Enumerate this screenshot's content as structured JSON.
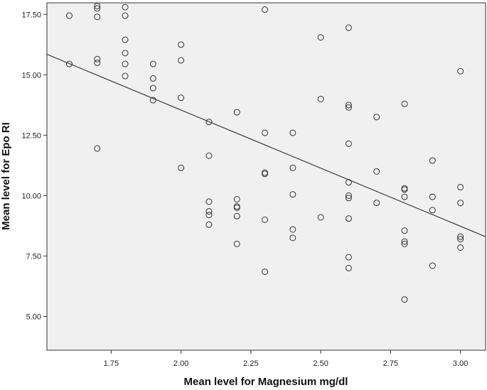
{
  "chart_data": {
    "type": "scatter",
    "xlabel": "Mean level for Magnesium mg/dl",
    "ylabel": "Mean level for Epo RI",
    "xlim": [
      1.52,
      3.09
    ],
    "ylim": [
      3.6,
      17.98
    ],
    "x_ticks": [
      {
        "value": 1.75,
        "label": "1.75"
      },
      {
        "value": 2.0,
        "label": "2.00"
      },
      {
        "value": 2.25,
        "label": "2.25"
      },
      {
        "value": 2.5,
        "label": "2.50"
      },
      {
        "value": 2.75,
        "label": "2.75"
      },
      {
        "value": 3.0,
        "label": "3.00"
      }
    ],
    "y_ticks": [
      {
        "value": 5.0,
        "label": "5.00"
      },
      {
        "value": 7.5,
        "label": "7.50"
      },
      {
        "value": 10.0,
        "label": "10.00"
      },
      {
        "value": 12.5,
        "label": "12.50"
      },
      {
        "value": 15.0,
        "label": "15.00"
      },
      {
        "value": 17.5,
        "label": "17.50"
      }
    ],
    "grid": false,
    "fit_line": {
      "x": [
        1.52,
        3.09
      ],
      "y": [
        15.85,
        8.3
      ]
    },
    "points": [
      {
        "x": 1.6,
        "y": 17.45
      },
      {
        "x": 1.6,
        "y": 15.45
      },
      {
        "x": 1.7,
        "y": 17.85
      },
      {
        "x": 1.7,
        "y": 17.75
      },
      {
        "x": 1.7,
        "y": 17.4
      },
      {
        "x": 1.7,
        "y": 15.65
      },
      {
        "x": 1.7,
        "y": 15.5
      },
      {
        "x": 1.7,
        "y": 11.95
      },
      {
        "x": 1.8,
        "y": 17.8
      },
      {
        "x": 1.8,
        "y": 17.45
      },
      {
        "x": 1.8,
        "y": 16.45
      },
      {
        "x": 1.8,
        "y": 15.9
      },
      {
        "x": 1.8,
        "y": 15.45
      },
      {
        "x": 1.8,
        "y": 14.95
      },
      {
        "x": 1.9,
        "y": 15.45
      },
      {
        "x": 1.9,
        "y": 14.85
      },
      {
        "x": 1.9,
        "y": 14.45
      },
      {
        "x": 1.9,
        "y": 13.95
      },
      {
        "x": 2.0,
        "y": 16.25
      },
      {
        "x": 2.0,
        "y": 15.6
      },
      {
        "x": 2.0,
        "y": 14.05
      },
      {
        "x": 2.0,
        "y": 11.15
      },
      {
        "x": 2.1,
        "y": 13.05
      },
      {
        "x": 2.1,
        "y": 11.65
      },
      {
        "x": 2.1,
        "y": 9.75
      },
      {
        "x": 2.1,
        "y": 9.35
      },
      {
        "x": 2.1,
        "y": 9.2
      },
      {
        "x": 2.1,
        "y": 8.8
      },
      {
        "x": 2.2,
        "y": 13.45
      },
      {
        "x": 2.2,
        "y": 9.85
      },
      {
        "x": 2.2,
        "y": 9.55
      },
      {
        "x": 2.2,
        "y": 9.5
      },
      {
        "x": 2.2,
        "y": 9.15
      },
      {
        "x": 2.2,
        "y": 8.0
      },
      {
        "x": 2.3,
        "y": 17.7
      },
      {
        "x": 2.3,
        "y": 12.6
      },
      {
        "x": 2.3,
        "y": 10.95
      },
      {
        "x": 2.3,
        "y": 10.9
      },
      {
        "x": 2.3,
        "y": 9.0
      },
      {
        "x": 2.3,
        "y": 6.85
      },
      {
        "x": 2.4,
        "y": 12.6
      },
      {
        "x": 2.4,
        "y": 11.15
      },
      {
        "x": 2.4,
        "y": 10.05
      },
      {
        "x": 2.4,
        "y": 8.6
      },
      {
        "x": 2.4,
        "y": 8.25
      },
      {
        "x": 2.5,
        "y": 16.55
      },
      {
        "x": 2.5,
        "y": 14.0
      },
      {
        "x": 2.5,
        "y": 9.1
      },
      {
        "x": 2.6,
        "y": 16.95
      },
      {
        "x": 2.6,
        "y": 13.75
      },
      {
        "x": 2.6,
        "y": 13.65
      },
      {
        "x": 2.6,
        "y": 12.15
      },
      {
        "x": 2.6,
        "y": 10.55
      },
      {
        "x": 2.6,
        "y": 10.0
      },
      {
        "x": 2.6,
        "y": 9.9
      },
      {
        "x": 2.6,
        "y": 9.05
      },
      {
        "x": 2.6,
        "y": 7.45
      },
      {
        "x": 2.6,
        "y": 7.0
      },
      {
        "x": 2.7,
        "y": 13.25
      },
      {
        "x": 2.7,
        "y": 11.0
      },
      {
        "x": 2.7,
        "y": 9.7
      },
      {
        "x": 2.8,
        "y": 13.8
      },
      {
        "x": 2.8,
        "y": 10.3
      },
      {
        "x": 2.8,
        "y": 10.25
      },
      {
        "x": 2.8,
        "y": 9.95
      },
      {
        "x": 2.8,
        "y": 8.55
      },
      {
        "x": 2.8,
        "y": 8.1
      },
      {
        "x": 2.8,
        "y": 8.0
      },
      {
        "x": 2.8,
        "y": 5.7
      },
      {
        "x": 2.9,
        "y": 11.45
      },
      {
        "x": 2.9,
        "y": 9.95
      },
      {
        "x": 2.9,
        "y": 9.4
      },
      {
        "x": 2.9,
        "y": 7.1
      },
      {
        "x": 3.0,
        "y": 15.15
      },
      {
        "x": 3.0,
        "y": 10.35
      },
      {
        "x": 3.0,
        "y": 9.7
      },
      {
        "x": 3.0,
        "y": 8.3
      },
      {
        "x": 3.0,
        "y": 8.2
      },
      {
        "x": 3.0,
        "y": 7.85
      }
    ],
    "colors": {
      "plot_background": "#f0f0f0",
      "marker_stroke": "#333333",
      "fit_line": "#3a3a3a",
      "axis": "#333333"
    }
  }
}
